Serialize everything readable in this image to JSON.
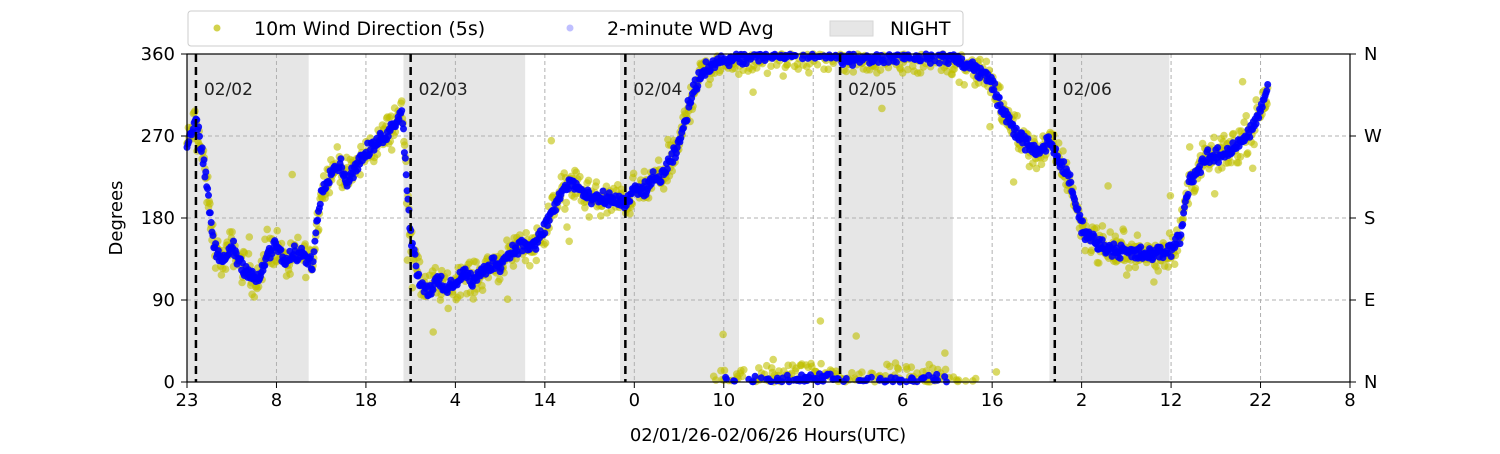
{
  "chart_data": {
    "type": "scatter",
    "title": "",
    "xlabel": "02/01/26-02/06/26  Hours(UTC)",
    "ylabel": "Degrees",
    "x_units": "hours since 02/01 23:00 UTC",
    "xlim": [
      0,
      130
    ],
    "ylim": [
      0,
      360
    ],
    "x_tick_values": [
      0,
      10,
      20,
      30,
      40,
      50,
      60,
      70,
      80,
      90,
      100,
      110,
      120,
      130
    ],
    "x_tick_labels": [
      "23",
      "8",
      "18",
      "4",
      "14",
      "0",
      "10",
      "20",
      "6",
      "16",
      "2",
      "12",
      "22",
      "8"
    ],
    "y_tick_values": [
      0,
      90,
      180,
      270,
      360
    ],
    "y_tick_labels": [
      "0",
      "90",
      "180",
      "270",
      "360"
    ],
    "y_right_tick_labels": [
      "N",
      "E",
      "S",
      "W",
      "N"
    ],
    "grid": true,
    "legend": {
      "placement": "top-left-outside",
      "entries": [
        {
          "label": "10m Wind Direction (5s)",
          "color": "#bfbf00"
        },
        {
          "label": "2-minute WD Avg",
          "color": "#0000ff"
        },
        {
          "label": "NIGHT",
          "color": "#e6e6e6"
        }
      ]
    },
    "day_markers": [
      {
        "hour": 1,
        "label": "02/02"
      },
      {
        "hour": 25,
        "label": "02/03"
      },
      {
        "hour": 49,
        "label": "02/04"
      },
      {
        "hour": 73,
        "label": "02/05"
      },
      {
        "hour": 97,
        "label": "02/06"
      }
    ],
    "night_periods": [
      [
        0,
        13.6
      ],
      [
        24.2,
        37.8
      ],
      [
        48.4,
        61.7
      ],
      [
        72.4,
        85.6
      ],
      [
        96.4,
        109.8
      ]
    ],
    "series": [
      {
        "name": "10m Wind Direction (5s)",
        "color": "#bfbf00",
        "spread_deg": 28
      },
      {
        "name": "2-minute WD Avg",
        "color": "#0000ff",
        "spread_deg": 12
      }
    ],
    "trace_keypoints": {
      "hours": [
        0,
        1,
        2,
        3,
        4,
        5,
        6,
        7,
        8,
        9,
        10,
        11,
        12,
        13,
        14,
        15,
        16,
        17,
        18,
        19,
        20,
        21,
        22,
        23,
        24,
        25,
        26,
        27,
        28,
        29,
        30,
        31,
        32,
        33,
        34,
        35,
        36,
        37,
        38,
        39,
        40,
        41,
        42,
        43,
        44,
        45,
        46,
        47,
        48,
        49,
        50,
        51,
        52,
        53,
        54,
        55,
        56,
        57,
        58,
        60,
        65,
        70,
        75,
        80,
        85,
        88,
        90,
        91,
        93,
        95,
        96.4,
        98.7,
        100,
        102,
        104,
        106,
        108,
        110,
        111,
        112,
        114,
        116,
        119,
        120.8
      ],
      "degrees": [
        260,
        290,
        230,
        150,
        130,
        150,
        130,
        120,
        110,
        140,
        150,
        130,
        140,
        140,
        130,
        210,
        230,
        240,
        220,
        240,
        250,
        260,
        270,
        280,
        300,
        160,
        110,
        100,
        110,
        100,
        110,
        120,
        110,
        120,
        130,
        130,
        140,
        150,
        150,
        150,
        170,
        190,
        210,
        220,
        210,
        200,
        200,
        200,
        200,
        195,
        210,
        210,
        220,
        225,
        240,
        260,
        300,
        330,
        345,
        355,
        358,
        362,
        356,
        360,
        358,
        345,
        330,
        300,
        270,
        250,
        265,
        220,
        170,
        150,
        145,
        140,
        140,
        145,
        160,
        220,
        245,
        250,
        275,
        320
      ]
    }
  }
}
